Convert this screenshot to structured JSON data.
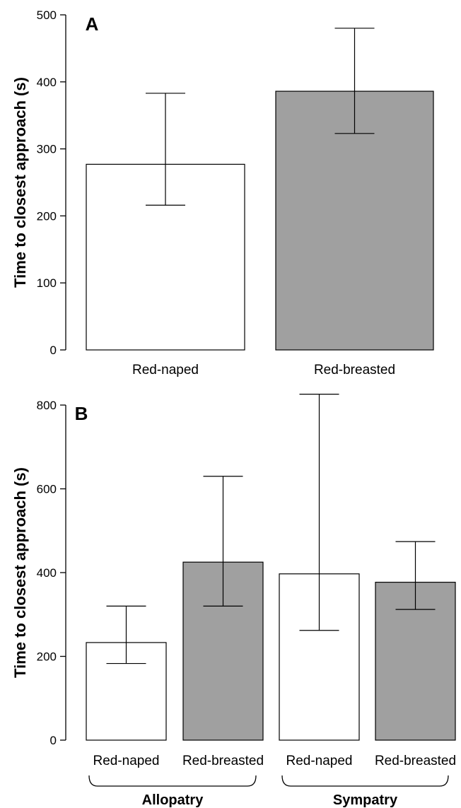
{
  "chart_data": [
    {
      "type": "bar",
      "panel_label": "A",
      "categories": [
        "Red-naped",
        "Red-breasted"
      ],
      "values": [
        277,
        386
      ],
      "error_low": [
        216,
        323
      ],
      "error_high": [
        383,
        480
      ],
      "ylabel": "Time to closest approach (s)",
      "ylim": [
        0,
        500
      ],
      "yticks": [
        0,
        100,
        200,
        300,
        400,
        500
      ],
      "bar_colors": [
        "#ffffff",
        "#a0a0a0"
      ],
      "grid": false
    },
    {
      "type": "bar",
      "panel_label": "B",
      "categories": [
        "Red-naped",
        "Red-breasted",
        "Red-naped",
        "Red-breasted"
      ],
      "values": [
        233,
        425,
        397,
        377
      ],
      "error_low": [
        183,
        320,
        262,
        312
      ],
      "error_high": [
        320,
        630,
        826,
        474
      ],
      "groups": [
        {
          "label": "Allopatry",
          "span": [
            0,
            1
          ]
        },
        {
          "label": "Sympatry",
          "span": [
            2,
            3
          ]
        }
      ],
      "ylabel": "Time to closest approach (s)",
      "ylim": [
        0,
        800
      ],
      "yticks": [
        0,
        200,
        400,
        600,
        800
      ],
      "bar_colors": [
        "#ffffff",
        "#a0a0a0",
        "#ffffff",
        "#a0a0a0"
      ],
      "grid": false
    }
  ]
}
